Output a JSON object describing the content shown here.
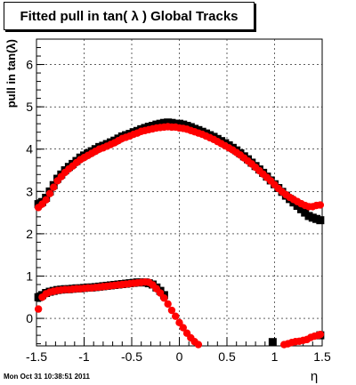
{
  "chart_data": {
    "type": "scatter",
    "title": "Fitted pull in tan( λ )  Global Tracks",
    "xlabel": "η",
    "ylabel": "pull in tan(λ)",
    "xlim": [
      -1.5,
      1.5
    ],
    "ylim": [
      -0.65,
      6.6
    ],
    "xticks": [
      -1.5,
      -1,
      -0.5,
      0,
      0.5,
      1,
      1.5
    ],
    "yticks": [
      0,
      1,
      2,
      3,
      4,
      5,
      6
    ],
    "grid": true,
    "series": [
      {
        "marker": "square",
        "color": "#000000",
        "points": [
          [
            -1.48,
            2.7
          ],
          [
            -1.44,
            2.75
          ],
          [
            -1.4,
            2.85
          ],
          [
            -1.36,
            3.0
          ],
          [
            -1.32,
            3.15
          ],
          [
            -1.28,
            3.3
          ],
          [
            -1.24,
            3.4
          ],
          [
            -1.2,
            3.5
          ],
          [
            -1.16,
            3.58
          ],
          [
            -1.12,
            3.65
          ],
          [
            -1.08,
            3.72
          ],
          [
            -1.04,
            3.8
          ],
          [
            -1.0,
            3.85
          ],
          [
            -0.96,
            3.9
          ],
          [
            -0.92,
            3.95
          ],
          [
            -0.88,
            4.0
          ],
          [
            -0.84,
            4.05
          ],
          [
            -0.8,
            4.08
          ],
          [
            -0.76,
            4.12
          ],
          [
            -0.72,
            4.16
          ],
          [
            -0.68,
            4.2
          ],
          [
            -0.64,
            4.25
          ],
          [
            -0.6,
            4.3
          ],
          [
            -0.56,
            4.33
          ],
          [
            -0.52,
            4.36
          ],
          [
            -0.48,
            4.4
          ],
          [
            -0.44,
            4.43
          ],
          [
            -0.4,
            4.47
          ],
          [
            -0.36,
            4.5
          ],
          [
            -0.32,
            4.53
          ],
          [
            -0.28,
            4.55
          ],
          [
            -0.24,
            4.58
          ],
          [
            -0.2,
            4.6
          ],
          [
            -0.16,
            4.62
          ],
          [
            -0.12,
            4.63
          ],
          [
            -0.08,
            4.62
          ],
          [
            -0.04,
            4.6
          ],
          [
            0.0,
            4.6
          ],
          [
            0.04,
            4.58
          ],
          [
            0.08,
            4.55
          ],
          [
            0.12,
            4.52
          ],
          [
            0.16,
            4.48
          ],
          [
            0.2,
            4.45
          ],
          [
            0.24,
            4.41
          ],
          [
            0.28,
            4.37
          ],
          [
            0.32,
            4.33
          ],
          [
            0.36,
            4.29
          ],
          [
            0.4,
            4.24
          ],
          [
            0.44,
            4.19
          ],
          [
            0.48,
            4.14
          ],
          [
            0.52,
            4.09
          ],
          [
            0.56,
            4.03
          ],
          [
            0.6,
            3.97
          ],
          [
            0.64,
            3.9
          ],
          [
            0.68,
            3.83
          ],
          [
            0.72,
            3.76
          ],
          [
            0.76,
            3.68
          ],
          [
            0.8,
            3.6
          ],
          [
            0.84,
            3.52
          ],
          [
            0.88,
            3.44
          ],
          [
            0.92,
            3.35
          ],
          [
            0.96,
            3.26
          ],
          [
            1.0,
            3.17
          ],
          [
            1.04,
            3.08
          ],
          [
            1.08,
            2.99
          ],
          [
            1.12,
            2.9
          ],
          [
            1.16,
            2.82
          ],
          [
            1.2,
            2.74
          ],
          [
            1.24,
            2.66
          ],
          [
            1.28,
            2.58
          ],
          [
            1.32,
            2.5
          ],
          [
            1.36,
            2.42
          ],
          [
            1.4,
            2.38
          ],
          [
            1.44,
            2.35
          ],
          [
            1.48,
            2.32
          ],
          [
            -1.48,
            0.5
          ],
          [
            -1.44,
            0.55
          ],
          [
            -1.4,
            0.6
          ],
          [
            -1.36,
            0.63
          ],
          [
            -1.32,
            0.65
          ],
          [
            -1.28,
            0.67
          ],
          [
            -1.24,
            0.68
          ],
          [
            -1.2,
            0.69
          ],
          [
            -1.16,
            0.69
          ],
          [
            -1.12,
            0.7
          ],
          [
            -1.08,
            0.71
          ],
          [
            -1.04,
            0.71
          ],
          [
            -1.0,
            0.72
          ],
          [
            -0.96,
            0.73
          ],
          [
            -0.92,
            0.73
          ],
          [
            -0.88,
            0.74
          ],
          [
            -0.84,
            0.75
          ],
          [
            -0.8,
            0.76
          ],
          [
            -0.76,
            0.77
          ],
          [
            -0.72,
            0.78
          ],
          [
            -0.68,
            0.79
          ],
          [
            -0.64,
            0.8
          ],
          [
            -0.6,
            0.81
          ],
          [
            -0.56,
            0.82
          ],
          [
            -0.52,
            0.83
          ],
          [
            -0.48,
            0.84
          ],
          [
            -0.44,
            0.85
          ],
          [
            -0.4,
            0.85
          ],
          [
            -0.36,
            0.85
          ],
          [
            -0.32,
            0.83
          ],
          [
            -0.28,
            0.8
          ],
          [
            -0.24,
            0.73
          ],
          [
            -0.2,
            0.65
          ],
          [
            -0.16,
            0.55
          ],
          [
            0.98,
            -0.56
          ],
          [
            1.48,
            -0.4
          ]
        ]
      },
      {
        "marker": "circle",
        "color": "#ff0000",
        "points": [
          [
            -1.48,
            2.62
          ],
          [
            -1.44,
            2.7
          ],
          [
            -1.4,
            2.8
          ],
          [
            -1.36,
            2.95
          ],
          [
            -1.32,
            3.1
          ],
          [
            -1.28,
            3.25
          ],
          [
            -1.24,
            3.35
          ],
          [
            -1.2,
            3.45
          ],
          [
            -1.16,
            3.53
          ],
          [
            -1.12,
            3.6
          ],
          [
            -1.08,
            3.68
          ],
          [
            -1.04,
            3.75
          ],
          [
            -1.0,
            3.8
          ],
          [
            -0.96,
            3.85
          ],
          [
            -0.92,
            3.9
          ],
          [
            -0.88,
            3.95
          ],
          [
            -0.84,
            4.0
          ],
          [
            -0.8,
            4.03
          ],
          [
            -0.76,
            4.07
          ],
          [
            -0.72,
            4.11
          ],
          [
            -0.68,
            4.15
          ],
          [
            -0.64,
            4.2
          ],
          [
            -0.6,
            4.25
          ],
          [
            -0.56,
            4.28
          ],
          [
            -0.52,
            4.31
          ],
          [
            -0.48,
            4.35
          ],
          [
            -0.44,
            4.38
          ],
          [
            -0.4,
            4.42
          ],
          [
            -0.36,
            4.44
          ],
          [
            -0.32,
            4.46
          ],
          [
            -0.28,
            4.48
          ],
          [
            -0.24,
            4.5
          ],
          [
            -0.2,
            4.51
          ],
          [
            -0.16,
            4.52
          ],
          [
            -0.12,
            4.53
          ],
          [
            -0.08,
            4.52
          ],
          [
            -0.04,
            4.52
          ],
          [
            0.0,
            4.5
          ],
          [
            0.04,
            4.49
          ],
          [
            0.08,
            4.47
          ],
          [
            0.12,
            4.44
          ],
          [
            0.16,
            4.41
          ],
          [
            0.2,
            4.38
          ],
          [
            0.24,
            4.35
          ],
          [
            0.28,
            4.31
          ],
          [
            0.32,
            4.27
          ],
          [
            0.36,
            4.23
          ],
          [
            0.4,
            4.18
          ],
          [
            0.44,
            4.13
          ],
          [
            0.48,
            4.08
          ],
          [
            0.52,
            4.03
          ],
          [
            0.56,
            3.98
          ],
          [
            0.6,
            3.92
          ],
          [
            0.64,
            3.86
          ],
          [
            0.68,
            3.79
          ],
          [
            0.72,
            3.72
          ],
          [
            0.76,
            3.65
          ],
          [
            0.8,
            3.57
          ],
          [
            0.84,
            3.49
          ],
          [
            0.88,
            3.41
          ],
          [
            0.92,
            3.33
          ],
          [
            0.96,
            3.25
          ],
          [
            1.0,
            3.16
          ],
          [
            1.04,
            3.07
          ],
          [
            1.08,
            2.99
          ],
          [
            1.12,
            2.92
          ],
          [
            1.16,
            2.86
          ],
          [
            1.2,
            2.81
          ],
          [
            1.24,
            2.76
          ],
          [
            1.28,
            2.71
          ],
          [
            1.32,
            2.67
          ],
          [
            1.36,
            2.64
          ],
          [
            1.4,
            2.64
          ],
          [
            1.44,
            2.67
          ],
          [
            1.48,
            2.68
          ],
          [
            -1.48,
            0.22
          ],
          [
            -1.44,
            0.5
          ],
          [
            -1.4,
            0.58
          ],
          [
            -1.36,
            0.62
          ],
          [
            -1.32,
            0.64
          ],
          [
            -1.28,
            0.66
          ],
          [
            -1.24,
            0.67
          ],
          [
            -1.2,
            0.68
          ],
          [
            -1.16,
            0.68
          ],
          [
            -1.12,
            0.69
          ],
          [
            -1.08,
            0.7
          ],
          [
            -1.04,
            0.7
          ],
          [
            -1.0,
            0.71
          ],
          [
            -0.96,
            0.72
          ],
          [
            -0.92,
            0.72
          ],
          [
            -0.88,
            0.73
          ],
          [
            -0.84,
            0.74
          ],
          [
            -0.8,
            0.75
          ],
          [
            -0.76,
            0.76
          ],
          [
            -0.72,
            0.77
          ],
          [
            -0.68,
            0.78
          ],
          [
            -0.64,
            0.79
          ],
          [
            -0.6,
            0.8
          ],
          [
            -0.56,
            0.81
          ],
          [
            -0.52,
            0.82
          ],
          [
            -0.48,
            0.83
          ],
          [
            -0.44,
            0.84
          ],
          [
            -0.4,
            0.85
          ],
          [
            -0.36,
            0.86
          ],
          [
            -0.32,
            0.85
          ],
          [
            -0.28,
            0.79
          ],
          [
            -0.24,
            0.7
          ],
          [
            -0.2,
            0.6
          ],
          [
            -0.16,
            0.48
          ],
          [
            -0.12,
            0.34
          ],
          [
            -0.08,
            0.19
          ],
          [
            -0.04,
            0.05
          ],
          [
            0.0,
            -0.1
          ],
          [
            0.04,
            -0.22
          ],
          [
            0.08,
            -0.35
          ],
          [
            0.12,
            -0.46
          ],
          [
            0.16,
            -0.55
          ],
          [
            0.2,
            -0.62
          ],
          [
            1.1,
            -0.62
          ],
          [
            1.14,
            -0.6
          ],
          [
            1.18,
            -0.57
          ],
          [
            1.22,
            -0.55
          ],
          [
            1.26,
            -0.54
          ],
          [
            1.3,
            -0.52
          ],
          [
            1.34,
            -0.5
          ],
          [
            1.38,
            -0.45
          ],
          [
            1.42,
            -0.42
          ],
          [
            1.46,
            -0.4
          ],
          [
            1.48,
            -0.38
          ]
        ]
      }
    ]
  },
  "footer": {
    "timestamp": "Mon Oct 31 10:38:51 2011"
  }
}
